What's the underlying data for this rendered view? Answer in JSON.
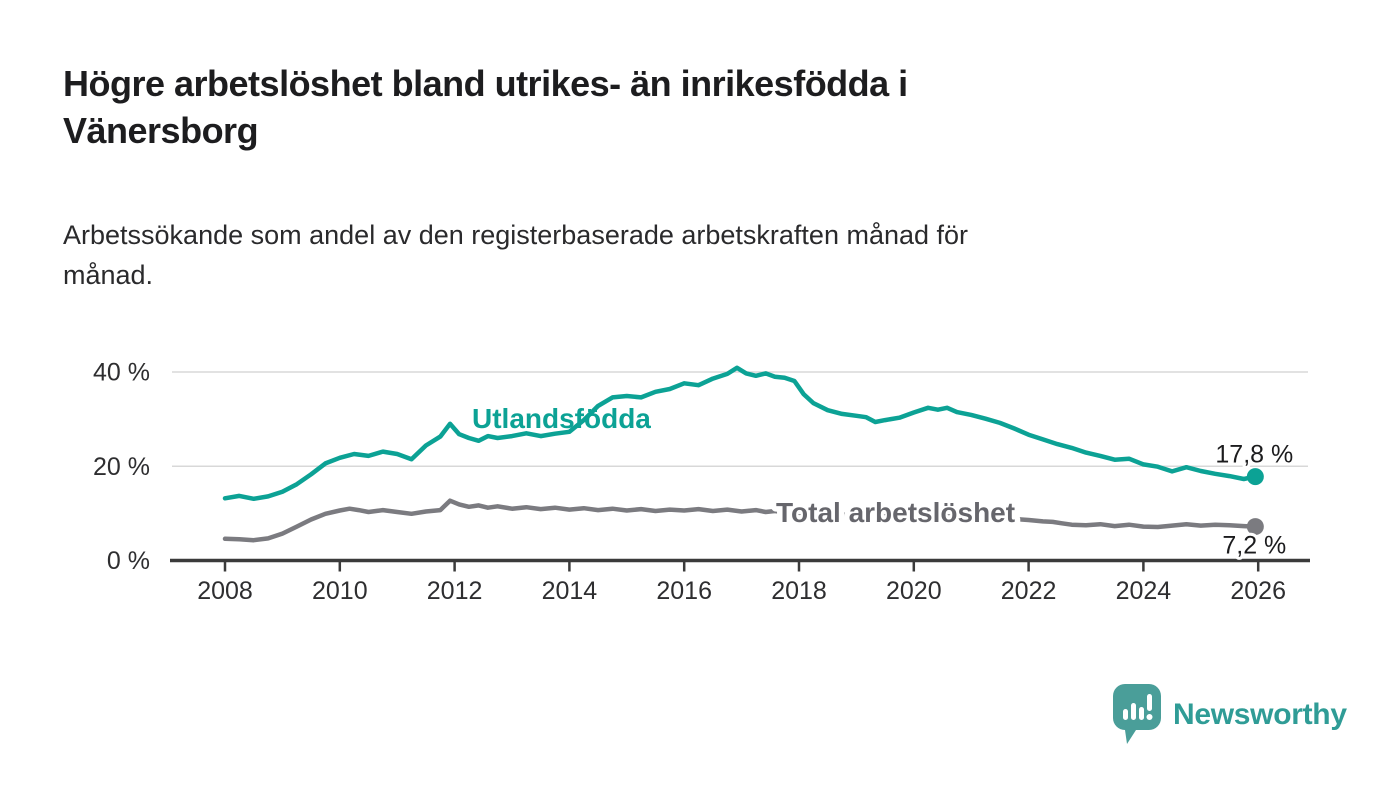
{
  "header": {
    "title_lines": [
      "Högre arbetslöshet bland utrikes- än inrikesfödda i",
      "Vänersborg"
    ],
    "subtitle_lines": [
      "Arbetssökande som andel av den registerbaserade arbetskraften månad för",
      "månad."
    ]
  },
  "brand": {
    "name": "Newsworthy",
    "color": "#2f9c96",
    "bubble_color": "#4a9e99",
    "icon": "bar-chart-speech-bubble"
  },
  "colors": {
    "foreign_born_line": "#0ca295",
    "total_line": "#7b7b80",
    "total_label_text": "#66666c",
    "gridline": "#d8d8d8",
    "axis": "#3b3b3b",
    "axis_text": "#2e2e30",
    "value_label_text": "#1c1c1e",
    "background": "#ffffff"
  },
  "chart_data": {
    "type": "line",
    "title": "Högre arbetslöshet bland utrikes- än inrikesfödda i Vänersborg",
    "subtitle": "Arbetssökande som andel av den registerbaserade arbetskraften månad för månad.",
    "unit": "%",
    "grid": "horizontal-only",
    "legend_position": "inline-labels",
    "x_axis": {
      "range": [
        2007.9,
        2026.9
      ],
      "tick_years": [
        2008,
        2010,
        2012,
        2014,
        2016,
        2018,
        2020,
        2022,
        2024,
        2026
      ]
    },
    "y_axis": {
      "range": [
        0,
        44
      ],
      "ticks": [
        {
          "value": 0,
          "label": "0 %"
        },
        {
          "value": 20,
          "label": "20 %"
        },
        {
          "value": 40,
          "label": "40 %"
        }
      ]
    },
    "series": [
      {
        "name": "Utlandsfödda",
        "color": "#0ca295",
        "end_label": "17,8 %",
        "end_value": 17.8,
        "points": [
          [
            2008.0,
            13.2
          ],
          [
            2008.25,
            13.7
          ],
          [
            2008.5,
            13.1
          ],
          [
            2008.75,
            13.6
          ],
          [
            2009.0,
            14.6
          ],
          [
            2009.25,
            16.2
          ],
          [
            2009.5,
            18.3
          ],
          [
            2009.75,
            20.6
          ],
          [
            2010.0,
            21.8
          ],
          [
            2010.25,
            22.6
          ],
          [
            2010.5,
            22.2
          ],
          [
            2010.75,
            23.1
          ],
          [
            2011.0,
            22.6
          ],
          [
            2011.25,
            21.5
          ],
          [
            2011.5,
            24.4
          ],
          [
            2011.75,
            26.3
          ],
          [
            2011.92,
            29.0
          ],
          [
            2012.08,
            26.8
          ],
          [
            2012.25,
            26.0
          ],
          [
            2012.42,
            25.4
          ],
          [
            2012.58,
            26.4
          ],
          [
            2012.75,
            26.0
          ],
          [
            2013.0,
            26.4
          ],
          [
            2013.25,
            27.0
          ],
          [
            2013.5,
            26.4
          ],
          [
            2013.75,
            26.9
          ],
          [
            2014.0,
            27.3
          ],
          [
            2014.25,
            29.8
          ],
          [
            2014.5,
            32.8
          ],
          [
            2014.75,
            34.6
          ],
          [
            2015.0,
            34.9
          ],
          [
            2015.25,
            34.6
          ],
          [
            2015.5,
            35.8
          ],
          [
            2015.75,
            36.4
          ],
          [
            2016.0,
            37.6
          ],
          [
            2016.25,
            37.2
          ],
          [
            2016.5,
            38.6
          ],
          [
            2016.75,
            39.6
          ],
          [
            2016.92,
            40.9
          ],
          [
            2017.08,
            39.7
          ],
          [
            2017.25,
            39.2
          ],
          [
            2017.42,
            39.7
          ],
          [
            2017.58,
            39.0
          ],
          [
            2017.75,
            38.8
          ],
          [
            2017.92,
            38.1
          ],
          [
            2018.08,
            35.3
          ],
          [
            2018.25,
            33.4
          ],
          [
            2018.5,
            31.9
          ],
          [
            2018.75,
            31.1
          ],
          [
            2019.0,
            30.7
          ],
          [
            2019.17,
            30.4
          ],
          [
            2019.33,
            29.4
          ],
          [
            2019.5,
            29.8
          ],
          [
            2019.75,
            30.3
          ],
          [
            2020.0,
            31.4
          ],
          [
            2020.25,
            32.4
          ],
          [
            2020.42,
            32.0
          ],
          [
            2020.58,
            32.4
          ],
          [
            2020.75,
            31.5
          ],
          [
            2021.0,
            30.9
          ],
          [
            2021.25,
            30.1
          ],
          [
            2021.5,
            29.2
          ],
          [
            2021.75,
            28.0
          ],
          [
            2022.0,
            26.7
          ],
          [
            2022.25,
            25.7
          ],
          [
            2022.5,
            24.7
          ],
          [
            2022.75,
            23.9
          ],
          [
            2023.0,
            22.9
          ],
          [
            2023.25,
            22.2
          ],
          [
            2023.5,
            21.4
          ],
          [
            2023.75,
            21.6
          ],
          [
            2024.0,
            20.4
          ],
          [
            2024.25,
            19.9
          ],
          [
            2024.5,
            18.9
          ],
          [
            2024.75,
            19.8
          ],
          [
            2025.0,
            19.0
          ],
          [
            2025.25,
            18.4
          ],
          [
            2025.5,
            17.9
          ],
          [
            2025.75,
            17.3
          ],
          [
            2025.95,
            17.8
          ]
        ]
      },
      {
        "name": "Total arbetslöshet",
        "color": "#7b7b80",
        "end_label": "7,2 %",
        "end_value": 7.2,
        "points": [
          [
            2008.0,
            4.6
          ],
          [
            2008.25,
            4.5
          ],
          [
            2008.5,
            4.3
          ],
          [
            2008.75,
            4.7
          ],
          [
            2009.0,
            5.7
          ],
          [
            2009.25,
            7.2
          ],
          [
            2009.5,
            8.7
          ],
          [
            2009.75,
            9.9
          ],
          [
            2010.0,
            10.6
          ],
          [
            2010.17,
            11.0
          ],
          [
            2010.33,
            10.7
          ],
          [
            2010.5,
            10.3
          ],
          [
            2010.75,
            10.7
          ],
          [
            2011.0,
            10.3
          ],
          [
            2011.25,
            9.9
          ],
          [
            2011.5,
            10.4
          ],
          [
            2011.75,
            10.7
          ],
          [
            2011.92,
            12.7
          ],
          [
            2012.08,
            11.9
          ],
          [
            2012.25,
            11.4
          ],
          [
            2012.42,
            11.7
          ],
          [
            2012.58,
            11.2
          ],
          [
            2012.75,
            11.5
          ],
          [
            2013.0,
            11.0
          ],
          [
            2013.25,
            11.3
          ],
          [
            2013.5,
            10.9
          ],
          [
            2013.75,
            11.2
          ],
          [
            2014.0,
            10.8
          ],
          [
            2014.25,
            11.1
          ],
          [
            2014.5,
            10.7
          ],
          [
            2014.75,
            11.0
          ],
          [
            2015.0,
            10.6
          ],
          [
            2015.25,
            10.9
          ],
          [
            2015.5,
            10.5
          ],
          [
            2015.75,
            10.8
          ],
          [
            2016.0,
            10.6
          ],
          [
            2016.25,
            10.9
          ],
          [
            2016.5,
            10.5
          ],
          [
            2016.75,
            10.8
          ],
          [
            2017.0,
            10.4
          ],
          [
            2017.25,
            10.7
          ],
          [
            2017.42,
            10.3
          ],
          [
            2017.58,
            10.5
          ],
          [
            2017.75,
            10.2
          ],
          [
            2018.0,
            10.1
          ],
          [
            2018.25,
            10.0
          ],
          [
            2018.5,
            9.9
          ],
          [
            2018.75,
            9.8
          ],
          [
            2019.0,
            9.7
          ],
          [
            2019.25,
            9.6
          ],
          [
            2019.5,
            9.6
          ],
          [
            2019.75,
            9.7
          ],
          [
            2020.0,
            9.9
          ],
          [
            2020.25,
            10.3
          ],
          [
            2020.5,
            10.1
          ],
          [
            2020.75,
            9.9
          ],
          [
            2021.0,
            9.6
          ],
          [
            2021.25,
            9.3
          ],
          [
            2021.5,
            9.0
          ],
          [
            2021.75,
            8.8
          ],
          [
            2022.0,
            8.6
          ],
          [
            2022.25,
            8.3
          ],
          [
            2022.42,
            8.2
          ],
          [
            2022.58,
            7.9
          ],
          [
            2022.75,
            7.6
          ],
          [
            2023.0,
            7.5
          ],
          [
            2023.25,
            7.7
          ],
          [
            2023.5,
            7.3
          ],
          [
            2023.75,
            7.6
          ],
          [
            2024.0,
            7.2
          ],
          [
            2024.25,
            7.1
          ],
          [
            2024.5,
            7.4
          ],
          [
            2024.75,
            7.7
          ],
          [
            2025.0,
            7.4
          ],
          [
            2025.25,
            7.6
          ],
          [
            2025.5,
            7.5
          ],
          [
            2025.75,
            7.3
          ],
          [
            2025.95,
            7.2
          ]
        ]
      }
    ]
  }
}
